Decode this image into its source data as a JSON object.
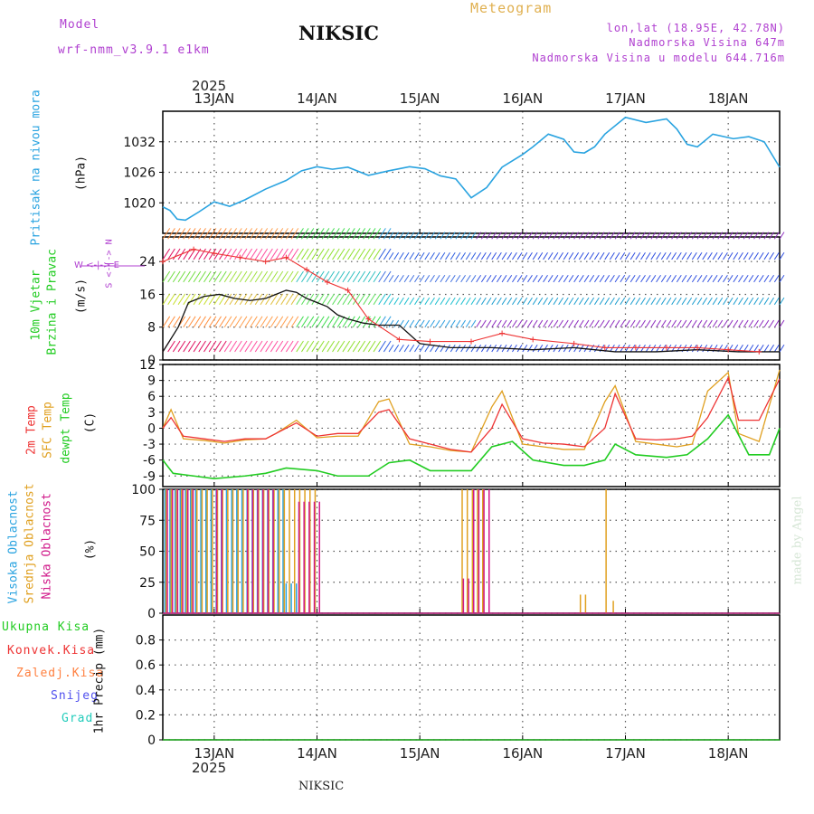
{
  "header": {
    "model_label": "Model",
    "model_name": "wrf-nmm_v3.9.1 e1km",
    "title": "NIKSIC",
    "meteogram": "Meteogram",
    "lonlat": "lon,lat (18.95E, 42.78N)",
    "elevation": "Nadmorska Visina 647m",
    "model_elevation": "Nadmorska Visina u modelu 644.716m",
    "year_top": "2025",
    "year_bottom": "2025",
    "footer": "NIKSIC",
    "credit": "made by Angel"
  },
  "colors": {
    "pressure": "#29a3e0",
    "t2m": "#ee3333",
    "sfc": "#e0a020",
    "dew": "#22cc22",
    "high": "#29a3e0",
    "mid": "#e0a020",
    "low": "#d01a8a",
    "purple": "#b040d0",
    "grid": "#555555"
  },
  "chart_data": [
    {
      "id": "pressure",
      "type": "line",
      "labels": [
        "Pritisak na nivou mora",
        "(hPa)"
      ],
      "x_ticks": [
        "13JAN",
        "14JAN",
        "15JAN",
        "16JAN",
        "17JAN",
        "18JAN"
      ],
      "y_ticks": [
        1020,
        1026,
        1032
      ],
      "ylim": [
        1014,
        1038
      ],
      "xlim": [
        0,
        6
      ],
      "series": [
        {
          "x": [
            0,
            0.07,
            0.14,
            0.22,
            0.35,
            0.5,
            0.65,
            0.8,
            1.0,
            1.2,
            1.35,
            1.5,
            1.65,
            1.8,
            2.0,
            2.2,
            2.4,
            2.55,
            2.7,
            2.85,
            3.0,
            3.15,
            3.3,
            3.5,
            3.6,
            3.75,
            3.9,
            4.0,
            4.1,
            4.2,
            4.3,
            4.5,
            4.7,
            4.9,
            5.0,
            5.1,
            5.2,
            5.35,
            5.55,
            5.7,
            5.85,
            6.0
          ],
          "y": [
            1019.2,
            1018.5,
            1016.8,
            1016.6,
            1018.2,
            1020.2,
            1019.3,
            1020.6,
            1022.7,
            1024.4,
            1026.3,
            1027.1,
            1026.6,
            1027.0,
            1025.4,
            1026.3,
            1027.1,
            1026.7,
            1025.3,
            1024.7,
            1021.0,
            1023.0,
            1027.0,
            1029.5,
            1031.0,
            1033.5,
            1032.5,
            1030.0,
            1029.8,
            1031.0,
            1033.5,
            1036.8,
            1035.8,
            1036.5,
            1034.5,
            1031.5,
            1031.0,
            1033.5,
            1032.6,
            1033.0,
            1032.0,
            1027.0
          ]
        }
      ]
    },
    {
      "id": "wind",
      "type": "scatter",
      "labels": [
        "10m Vjetar",
        "Brzina i Pravac",
        "(m/s)"
      ],
      "compass": "W <-|-> E",
      "compass_vertical": "S <-|-> N",
      "x_ticks": [
        "13JAN",
        "14JAN",
        "15JAN",
        "16JAN",
        "17JAN",
        "18JAN"
      ],
      "y_ticks": [
        0,
        8,
        16,
        24
      ],
      "ylim": [
        0,
        30
      ],
      "xlim": [
        0,
        6
      ],
      "barb_levels": [
        2,
        8,
        13.5,
        19,
        24.5,
        29.5
      ],
      "series": [
        {
          "x": [
            0,
            0.15,
            0.25,
            0.4,
            0.55,
            0.7,
            0.85,
            1.0,
            1.1,
            1.2,
            1.3,
            1.4,
            1.5,
            1.6,
            1.7,
            1.8,
            1.95,
            2.1,
            2.3,
            2.5,
            2.8,
            3.2,
            3.6,
            4.0,
            4.4,
            4.8,
            5.2,
            5.6,
            6.0
          ],
          "y": [
            2,
            8,
            14,
            15.5,
            16,
            15,
            14.5,
            15,
            16,
            17,
            16.5,
            15,
            14,
            13,
            11,
            10,
            9,
            8.5,
            8.5,
            4,
            3,
            3,
            2.5,
            3,
            2,
            2,
            2.5,
            2,
            2
          ]
        },
        {
          "x": [
            0,
            0.3,
            0.5,
            0.75,
            1.0,
            1.2,
            1.4,
            1.6,
            1.8,
            2.0,
            2.3,
            2.6,
            3.0,
            3.3,
            3.6,
            4.0,
            4.3,
            4.6,
            4.9,
            5.2,
            5.5,
            5.8
          ],
          "y": [
            24,
            27,
            26,
            25,
            24,
            25,
            22,
            19,
            17,
            10,
            5,
            4.5,
            4.5,
            6.5,
            5,
            4,
            3,
            3,
            3,
            3,
            2.5,
            2
          ]
        }
      ]
    },
    {
      "id": "temperature",
      "type": "line",
      "labels": [
        "2m Temp",
        "SFC Temp",
        "dewpt Temp",
        "(C)"
      ],
      "x_ticks": [
        "13JAN",
        "14JAN",
        "15JAN",
        "16JAN",
        "17JAN",
        "18JAN"
      ],
      "y_ticks": [
        -9,
        -6,
        -3,
        0,
        3,
        6,
        9,
        12
      ],
      "ylim": [
        -11,
        12
      ],
      "xlim": [
        0,
        6
      ],
      "series": [
        {
          "name": "2m Temp",
          "x": [
            0,
            0.08,
            0.2,
            0.4,
            0.6,
            0.8,
            1.0,
            1.1,
            1.3,
            1.5,
            1.7,
            1.9,
            2.1,
            2.2,
            2.4,
            2.6,
            2.8,
            3.0,
            3.2,
            3.3,
            3.5,
            3.7,
            3.9,
            4.1,
            4.3,
            4.4,
            4.6,
            4.8,
            5.0,
            5.15,
            5.3,
            5.5,
            5.6,
            5.8,
            6.0
          ],
          "y": [
            0,
            2,
            -1.5,
            -2,
            -2.5,
            -2,
            -2,
            -1,
            1,
            -1.5,
            -1,
            -1,
            3,
            3.5,
            -2,
            -3,
            -4,
            -4.5,
            0,
            4.5,
            -2,
            -2.8,
            -3,
            -3.5,
            0,
            6.5,
            -2,
            -2.2,
            -2,
            -1.5,
            2,
            9.5,
            1.5,
            1.5,
            9.3
          ]
        },
        {
          "name": "SFC Temp",
          "x": [
            0,
            0.08,
            0.2,
            0.4,
            0.6,
            0.8,
            1.0,
            1.1,
            1.3,
            1.5,
            1.7,
            1.9,
            2.1,
            2.2,
            2.4,
            2.6,
            2.8,
            3.0,
            3.2,
            3.3,
            3.5,
            3.7,
            3.9,
            4.1,
            4.3,
            4.4,
            4.6,
            4.8,
            5.0,
            5.15,
            5.3,
            5.5,
            5.6,
            5.8,
            6.0
          ],
          "y": [
            0,
            3.5,
            -2,
            -2.3,
            -2.8,
            -2.2,
            -2,
            -1,
            1.5,
            -1.8,
            -1.5,
            -1.5,
            5,
            5.5,
            -3,
            -3.5,
            -4.2,
            -4.5,
            4,
            7,
            -3,
            -3.5,
            -4,
            -4,
            5,
            8,
            -2.5,
            -3,
            -3.5,
            -3,
            7,
            10.5,
            -1,
            -2.5,
            11
          ]
        },
        {
          "name": "dewpt Temp",
          "x": [
            0,
            0.1,
            0.3,
            0.5,
            0.8,
            1.0,
            1.2,
            1.5,
            1.7,
            2.0,
            2.2,
            2.4,
            2.6,
            2.8,
            3.0,
            3.2,
            3.4,
            3.6,
            3.9,
            4.1,
            4.3,
            4.4,
            4.6,
            4.9,
            5.1,
            5.3,
            5.5,
            5.7,
            5.9,
            6.0
          ],
          "y": [
            -6,
            -8.5,
            -9,
            -9.5,
            -9,
            -8.5,
            -7.5,
            -8,
            -9,
            -9,
            -6.5,
            -6,
            -8,
            -8,
            -8,
            -3.5,
            -2.5,
            -6,
            -7,
            -7,
            -6,
            -3,
            -5,
            -5.5,
            -5,
            -2,
            2.5,
            -5,
            -5,
            0
          ]
        }
      ]
    },
    {
      "id": "clouds",
      "type": "bar",
      "labels": [
        "Visoka Oblacnost",
        "Srednja Oblacnost",
        "Niska Oblacnost",
        "(%)"
      ],
      "x_ticks": [
        "13JAN",
        "14JAN",
        "15JAN",
        "16JAN",
        "17JAN",
        "18JAN"
      ],
      "y_ticks": [
        0,
        25,
        50,
        75,
        100
      ],
      "ylim": [
        0,
        100
      ],
      "xlim": [
        0,
        6
      ],
      "series": [
        {
          "name": "Visoka Oblacnost",
          "ranges": [
            [
              0.02,
              1.2,
              100
            ],
            [
              1.2,
              1.3,
              24
            ]
          ]
        },
        {
          "name": "Srednja Oblacnost",
          "ranges": [
            [
              0.02,
              1.5,
              100
            ],
            [
              2.0,
              2.05,
              0
            ],
            [
              2.9,
              3.1,
              100
            ],
            [
              4.05,
              4.1,
              15
            ],
            [
              4.3,
              4.34,
              100
            ],
            [
              4.37,
              4.4,
              10
            ]
          ]
        },
        {
          "name": "Niska Oblacnost",
          "ranges": [
            [
              0.02,
              0.3,
              100
            ],
            [
              0.5,
              0.6,
              100
            ],
            [
              0.8,
              1.1,
              100
            ],
            [
              1.3,
              1.55,
              90
            ],
            [
              2.9,
              2.95,
              28
            ],
            [
              3.0,
              3.15,
              100
            ]
          ]
        }
      ]
    },
    {
      "id": "precip",
      "type": "line",
      "labels": [
        "1hr Precip (mm)"
      ],
      "legend": [
        "Ukupna Kisa",
        "Konvek.Kisa",
        "Zaledj.Kisa",
        "Snijeg",
        "Grad"
      ],
      "x_ticks": [
        "13JAN",
        "14JAN",
        "15JAN",
        "16JAN",
        "17JAN",
        "18JAN"
      ],
      "y_ticks": [
        0,
        0.2,
        0.4,
        0.6,
        0.8
      ],
      "ylim": [
        0,
        1.0
      ],
      "xlim": [
        0,
        6
      ],
      "series": [
        {
          "name": "Ukupna Kisa",
          "x": [
            0,
            6
          ],
          "y": [
            0,
            0
          ]
        }
      ]
    }
  ]
}
